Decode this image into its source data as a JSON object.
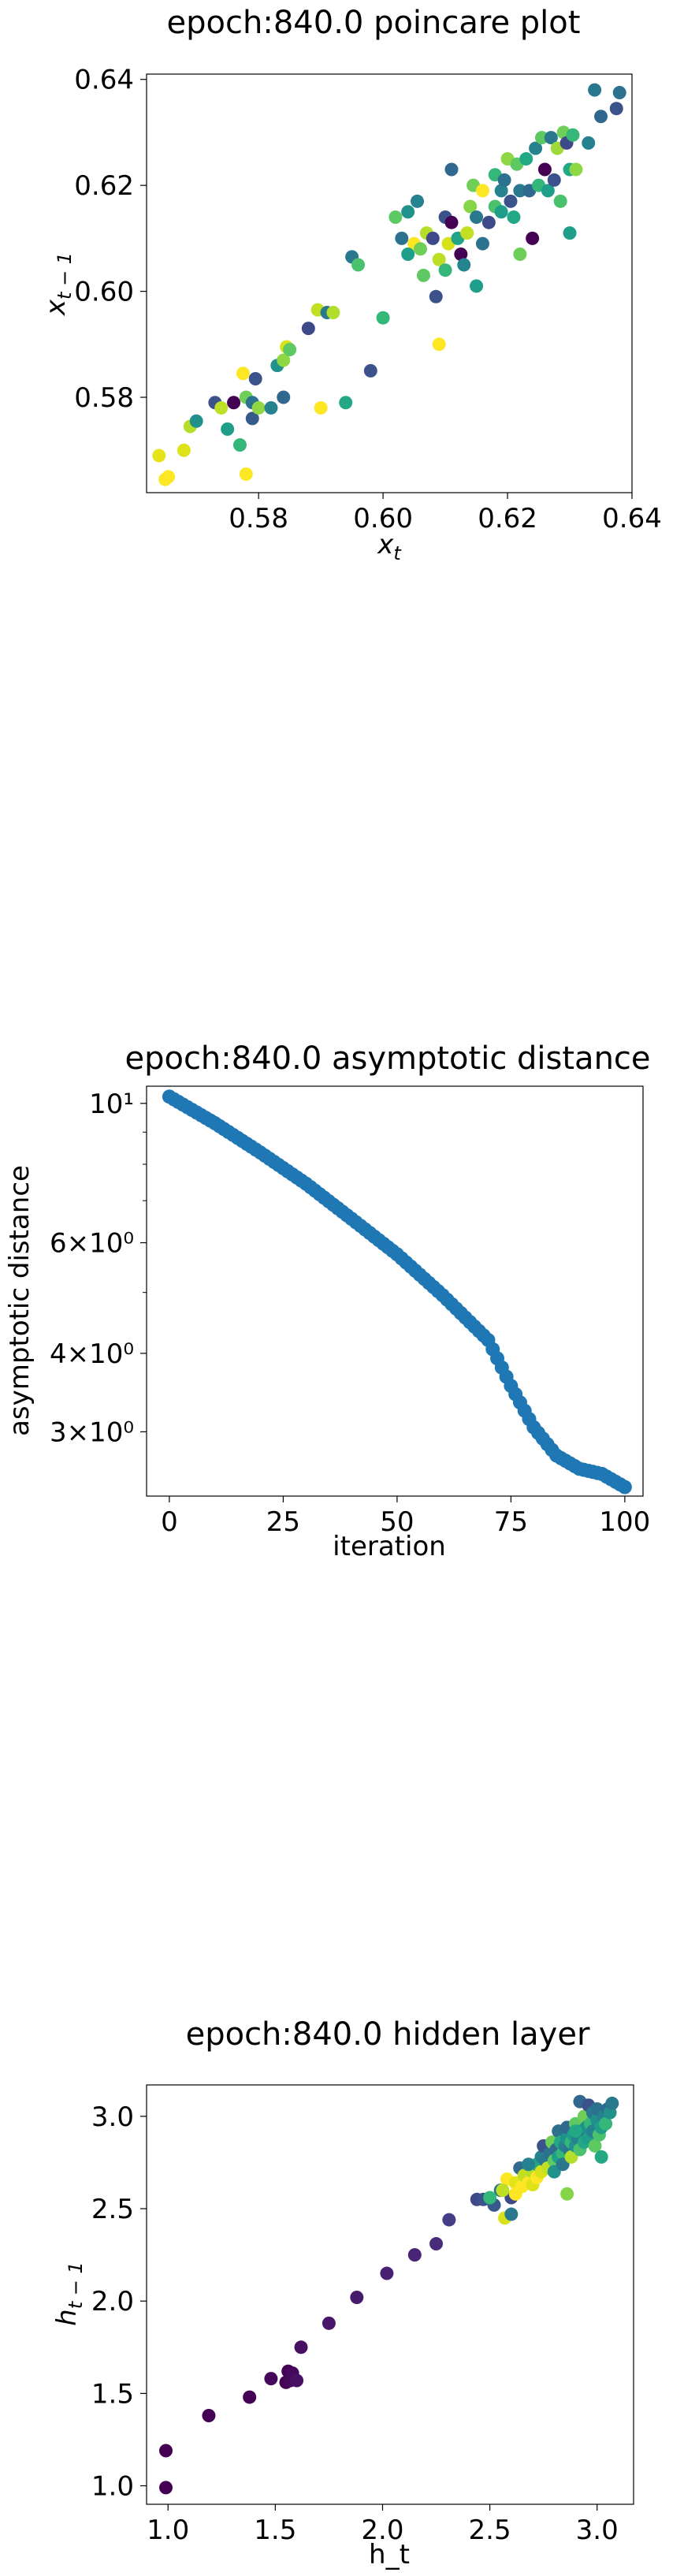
{
  "chart_data": [
    {
      "type": "scatter",
      "title": "epoch:840.0 poincare plot",
      "xlabel": "x_t",
      "ylabel": "x_{t-1}",
      "xlim": [
        0.562,
        0.64
      ],
      "ylim": [
        0.562,
        0.641
      ],
      "xticks": [
        0.58,
        0.6,
        0.62,
        0.64
      ],
      "xtick_labels": [
        "0.58",
        "0.60",
        "0.62",
        "0.64"
      ],
      "yticks": [
        0.58,
        0.6,
        0.62,
        0.64
      ],
      "ytick_labels": [
        "0.58",
        "0.60",
        "0.62",
        "0.64"
      ],
      "colormap": "viridis",
      "points": [
        {
          "x": 0.564,
          "y": 0.569,
          "c": "#e6e419"
        },
        {
          "x": 0.565,
          "y": 0.5645,
          "c": "#fde725"
        },
        {
          "x": 0.5655,
          "y": 0.565,
          "c": "#fde725"
        },
        {
          "x": 0.568,
          "y": 0.57,
          "c": "#dde318"
        },
        {
          "x": 0.569,
          "y": 0.5745,
          "c": "#b5de2b"
        },
        {
          "x": 0.57,
          "y": 0.5755,
          "c": "#21918c"
        },
        {
          "x": 0.573,
          "y": 0.579,
          "c": "#3b528b"
        },
        {
          "x": 0.574,
          "y": 0.578,
          "c": "#bddf26"
        },
        {
          "x": 0.575,
          "y": 0.574,
          "c": "#1f9e89"
        },
        {
          "x": 0.576,
          "y": 0.579,
          "c": "#440154"
        },
        {
          "x": 0.577,
          "y": 0.571,
          "c": "#35b779"
        },
        {
          "x": 0.578,
          "y": 0.5655,
          "c": "#fde725"
        },
        {
          "x": 0.5775,
          "y": 0.5845,
          "c": "#fde725"
        },
        {
          "x": 0.578,
          "y": 0.58,
          "c": "#6ece58"
        },
        {
          "x": 0.579,
          "y": 0.579,
          "c": "#2c728e"
        },
        {
          "x": 0.579,
          "y": 0.576,
          "c": "#38598c"
        },
        {
          "x": 0.5795,
          "y": 0.5835,
          "c": "#3b528b"
        },
        {
          "x": 0.58,
          "y": 0.578,
          "c": "#90d743"
        },
        {
          "x": 0.582,
          "y": 0.578,
          "c": "#26828e"
        },
        {
          "x": 0.583,
          "y": 0.586,
          "c": "#21918c"
        },
        {
          "x": 0.584,
          "y": 0.587,
          "c": "#8fd744"
        },
        {
          "x": 0.584,
          "y": 0.58,
          "c": "#31688e"
        },
        {
          "x": 0.5845,
          "y": 0.5895,
          "c": "#d8e219"
        },
        {
          "x": 0.585,
          "y": 0.589,
          "c": "#5ec962"
        },
        {
          "x": 0.588,
          "y": 0.593,
          "c": "#3e4989"
        },
        {
          "x": 0.5895,
          "y": 0.5965,
          "c": "#c2df23"
        },
        {
          "x": 0.59,
          "y": 0.578,
          "c": "#fde725"
        },
        {
          "x": 0.591,
          "y": 0.596,
          "c": "#2a788e"
        },
        {
          "x": 0.592,
          "y": 0.596,
          "c": "#b2dd2d"
        },
        {
          "x": 0.594,
          "y": 0.579,
          "c": "#22a884"
        },
        {
          "x": 0.595,
          "y": 0.6065,
          "c": "#2a788e"
        },
        {
          "x": 0.596,
          "y": 0.605,
          "c": "#4ac16d"
        },
        {
          "x": 0.598,
          "y": 0.585,
          "c": "#3b528b"
        },
        {
          "x": 0.6,
          "y": 0.595,
          "c": "#35b779"
        },
        {
          "x": 0.602,
          "y": 0.614,
          "c": "#5ec962"
        },
        {
          "x": 0.603,
          "y": 0.61,
          "c": "#2c728e"
        },
        {
          "x": 0.604,
          "y": 0.615,
          "c": "#21918c"
        },
        {
          "x": 0.605,
          "y": 0.609,
          "c": "#fde725"
        },
        {
          "x": 0.604,
          "y": 0.607,
          "c": "#1f9e89"
        },
        {
          "x": 0.6055,
          "y": 0.617,
          "c": "#26828e"
        },
        {
          "x": 0.606,
          "y": 0.608,
          "c": "#6ece58"
        },
        {
          "x": 0.6065,
          "y": 0.603,
          "c": "#5ec962"
        },
        {
          "x": 0.607,
          "y": 0.611,
          "c": "#b5de2b"
        },
        {
          "x": 0.608,
          "y": 0.61,
          "c": "#3e4989"
        },
        {
          "x": 0.6085,
          "y": 0.599,
          "c": "#3b528b"
        },
        {
          "x": 0.609,
          "y": 0.606,
          "c": "#bddf26"
        },
        {
          "x": 0.609,
          "y": 0.59,
          "c": "#fde725"
        },
        {
          "x": 0.61,
          "y": 0.614,
          "c": "#3b528b"
        },
        {
          "x": 0.61,
          "y": 0.604,
          "c": "#35b779"
        },
        {
          "x": 0.6105,
          "y": 0.609,
          "c": "#d8e219"
        },
        {
          "x": 0.611,
          "y": 0.613,
          "c": "#440154"
        },
        {
          "x": 0.611,
          "y": 0.623,
          "c": "#31688e"
        },
        {
          "x": 0.612,
          "y": 0.61,
          "c": "#20a386"
        },
        {
          "x": 0.6125,
          "y": 0.607,
          "c": "#440154"
        },
        {
          "x": 0.613,
          "y": 0.605,
          "c": "#25858e"
        },
        {
          "x": 0.6135,
          "y": 0.611,
          "c": "#c2df23"
        },
        {
          "x": 0.614,
          "y": 0.616,
          "c": "#86d549"
        },
        {
          "x": 0.6145,
          "y": 0.62,
          "c": "#6ece58"
        },
        {
          "x": 0.615,
          "y": 0.614,
          "c": "#2a788e"
        },
        {
          "x": 0.615,
          "y": 0.601,
          "c": "#1f9e89"
        },
        {
          "x": 0.616,
          "y": 0.619,
          "c": "#fde725"
        },
        {
          "x": 0.616,
          "y": 0.609,
          "c": "#2c728e"
        },
        {
          "x": 0.617,
          "y": 0.613,
          "c": "#3e4989"
        },
        {
          "x": 0.618,
          "y": 0.616,
          "c": "#4ac16d"
        },
        {
          "x": 0.618,
          "y": 0.622,
          "c": "#35b779"
        },
        {
          "x": 0.619,
          "y": 0.615,
          "c": "#1f9e89"
        },
        {
          "x": 0.619,
          "y": 0.619,
          "c": "#26828e"
        },
        {
          "x": 0.6195,
          "y": 0.621,
          "c": "#2c728e"
        },
        {
          "x": 0.62,
          "y": 0.625,
          "c": "#8fd744"
        },
        {
          "x": 0.6205,
          "y": 0.617,
          "c": "#3b528b"
        },
        {
          "x": 0.621,
          "y": 0.614,
          "c": "#22a884"
        },
        {
          "x": 0.6215,
          "y": 0.624,
          "c": "#5ec962"
        },
        {
          "x": 0.622,
          "y": 0.619,
          "c": "#2a788e"
        },
        {
          "x": 0.622,
          "y": 0.607,
          "c": "#6ece58"
        },
        {
          "x": 0.623,
          "y": 0.625,
          "c": "#22a884"
        },
        {
          "x": 0.6235,
          "y": 0.619,
          "c": "#31688e"
        },
        {
          "x": 0.624,
          "y": 0.61,
          "c": "#440154"
        },
        {
          "x": 0.6245,
          "y": 0.627,
          "c": "#26828e"
        },
        {
          "x": 0.625,
          "y": 0.62,
          "c": "#35b779"
        },
        {
          "x": 0.6255,
          "y": 0.629,
          "c": "#5ec962"
        },
        {
          "x": 0.626,
          "y": 0.623,
          "c": "#440154"
        },
        {
          "x": 0.6265,
          "y": 0.619,
          "c": "#1f9e89"
        },
        {
          "x": 0.627,
          "y": 0.629,
          "c": "#2a788e"
        },
        {
          "x": 0.6275,
          "y": 0.621,
          "c": "#3b528b"
        },
        {
          "x": 0.628,
          "y": 0.627,
          "c": "#9fda3a"
        },
        {
          "x": 0.6285,
          "y": 0.617,
          "c": "#4ac16d"
        },
        {
          "x": 0.629,
          "y": 0.63,
          "c": "#6ece58"
        },
        {
          "x": 0.6295,
          "y": 0.628,
          "c": "#3e4989"
        },
        {
          "x": 0.63,
          "y": 0.623,
          "c": "#22a884"
        },
        {
          "x": 0.63,
          "y": 0.611,
          "c": "#1f9e89"
        },
        {
          "x": 0.6305,
          "y": 0.6295,
          "c": "#35b779"
        },
        {
          "x": 0.631,
          "y": 0.623,
          "c": "#8fd744"
        },
        {
          "x": 0.633,
          "y": 0.628,
          "c": "#26828e"
        },
        {
          "x": 0.634,
          "y": 0.638,
          "c": "#2a788e"
        },
        {
          "x": 0.635,
          "y": 0.633,
          "c": "#31688e"
        },
        {
          "x": 0.6375,
          "y": 0.6345,
          "c": "#3b528b"
        },
        {
          "x": 0.638,
          "y": 0.6375,
          "c": "#2c728e"
        }
      ]
    },
    {
      "type": "scatter",
      "title": "epoch:840.0 asymptotic distance",
      "xlabel": "iteration",
      "ylabel": "asymptotic distance",
      "yscale": "log",
      "xlim": [
        -5,
        104
      ],
      "ylim": [
        2.37,
        10.65
      ],
      "xticks": [
        0,
        25,
        50,
        75,
        100
      ],
      "xtick_labels": [
        "0",
        "25",
        "50",
        "75",
        "100"
      ],
      "yticks": [
        10,
        6,
        4,
        3
      ],
      "ytick_labels": [
        "10¹",
        "6×10⁰",
        "4×10⁰",
        "3×10⁰"
      ],
      "series_color": "#1f77b4",
      "knots_x": [
        0,
        10,
        20,
        30,
        40,
        50,
        60,
        70,
        75,
        80,
        85,
        90,
        95,
        100
      ],
      "knots_y": [
        10.25,
        9.3,
        8.35,
        7.45,
        6.55,
        5.75,
        4.95,
        4.2,
        3.55,
        3.05,
        2.75,
        2.62,
        2.57,
        2.45
      ]
    },
    {
      "type": "scatter",
      "title": "epoch:840.0 hidden layer",
      "xlabel": "h_t",
      "ylabel": "h_{t-1}",
      "xlim": [
        0.9,
        3.17
      ],
      "ylim": [
        0.9,
        3.17
      ],
      "xticks": [
        1.0,
        1.5,
        2.0,
        2.5,
        3.0
      ],
      "xtick_labels": [
        "1.0",
        "1.5",
        "2.0",
        "2.5",
        "3.0"
      ],
      "yticks": [
        1.0,
        1.5,
        2.0,
        2.5,
        3.0
      ],
      "ytick_labels": [
        "1.0",
        "1.5",
        "2.0",
        "2.5",
        "3.0"
      ],
      "colormap": "viridis",
      "points": [
        {
          "x": 0.99,
          "y": 0.99,
          "c": "#440154"
        },
        {
          "x": 0.99,
          "y": 1.19,
          "c": "#440154"
        },
        {
          "x": 1.19,
          "y": 1.38,
          "c": "#440154"
        },
        {
          "x": 1.38,
          "y": 1.48,
          "c": "#440154"
        },
        {
          "x": 1.48,
          "y": 1.58,
          "c": "#46085c"
        },
        {
          "x": 1.55,
          "y": 1.56,
          "c": "#440154"
        },
        {
          "x": 1.57,
          "y": 1.57,
          "c": "#46085c"
        },
        {
          "x": 1.56,
          "y": 1.62,
          "c": "#440154"
        },
        {
          "x": 1.58,
          "y": 1.61,
          "c": "#46085c"
        },
        {
          "x": 1.6,
          "y": 1.57,
          "c": "#471063"
        },
        {
          "x": 1.62,
          "y": 1.75,
          "c": "#471063"
        },
        {
          "x": 1.75,
          "y": 1.88,
          "c": "#481769"
        },
        {
          "x": 1.88,
          "y": 2.02,
          "c": "#481a6c"
        },
        {
          "x": 2.02,
          "y": 2.15,
          "c": "#482173"
        },
        {
          "x": 2.15,
          "y": 2.25,
          "c": "#482475"
        },
        {
          "x": 2.25,
          "y": 2.31,
          "c": "#472c7a"
        },
        {
          "x": 2.31,
          "y": 2.44,
          "c": "#433e85"
        },
        {
          "x": 2.44,
          "y": 2.55,
          "c": "#3e4989"
        },
        {
          "x": 2.47,
          "y": 2.55,
          "c": "#3b528b"
        },
        {
          "x": 2.52,
          "y": 2.52,
          "c": "#38598c"
        },
        {
          "x": 2.55,
          "y": 2.6,
          "c": "#2c728e"
        },
        {
          "x": 2.57,
          "y": 2.45,
          "c": "#d8e219"
        },
        {
          "x": 2.58,
          "y": 2.66,
          "c": "#fde725"
        },
        {
          "x": 2.6,
          "y": 2.56,
          "c": "#3e4989"
        },
        {
          "x": 2.6,
          "y": 2.47,
          "c": "#2a788e"
        },
        {
          "x": 2.62,
          "y": 2.64,
          "c": "#e5e419"
        },
        {
          "x": 2.64,
          "y": 2.72,
          "c": "#31688e"
        },
        {
          "x": 2.65,
          "y": 2.62,
          "c": "#fde725"
        },
        {
          "x": 2.66,
          "y": 2.68,
          "c": "#c2df23"
        },
        {
          "x": 2.68,
          "y": 2.64,
          "c": "#fde725"
        },
        {
          "x": 2.7,
          "y": 2.7,
          "c": "#b5de2b"
        },
        {
          "x": 2.7,
          "y": 2.63,
          "c": "#dde318"
        },
        {
          "x": 2.72,
          "y": 2.74,
          "c": "#22a884"
        },
        {
          "x": 2.72,
          "y": 2.67,
          "c": "#fde725"
        },
        {
          "x": 2.74,
          "y": 2.78,
          "c": "#26828e"
        },
        {
          "x": 2.74,
          "y": 2.7,
          "c": "#d8e219"
        },
        {
          "x": 2.75,
          "y": 2.84,
          "c": "#3b528b"
        },
        {
          "x": 2.76,
          "y": 2.76,
          "c": "#2a788e"
        },
        {
          "x": 2.77,
          "y": 2.72,
          "c": "#c2df23"
        },
        {
          "x": 2.78,
          "y": 2.8,
          "c": "#2c728e"
        },
        {
          "x": 2.79,
          "y": 2.86,
          "c": "#6ece58"
        },
        {
          "x": 2.8,
          "y": 2.76,
          "c": "#5ec962"
        },
        {
          "x": 2.8,
          "y": 2.7,
          "c": "#21918c"
        },
        {
          "x": 2.81,
          "y": 2.82,
          "c": "#31688e"
        },
        {
          "x": 2.82,
          "y": 2.92,
          "c": "#2c728e"
        },
        {
          "x": 2.82,
          "y": 2.78,
          "c": "#1f9e89"
        },
        {
          "x": 2.83,
          "y": 2.86,
          "c": "#22a884"
        },
        {
          "x": 2.84,
          "y": 2.8,
          "c": "#35b779"
        },
        {
          "x": 2.84,
          "y": 2.74,
          "c": "#2a788e"
        },
        {
          "x": 2.85,
          "y": 2.84,
          "c": "#26828e"
        },
        {
          "x": 2.86,
          "y": 2.88,
          "c": "#21918c"
        },
        {
          "x": 2.86,
          "y": 2.94,
          "c": "#31688e"
        },
        {
          "x": 2.86,
          "y": 2.58,
          "c": "#86d549"
        },
        {
          "x": 2.87,
          "y": 2.82,
          "c": "#2a788e"
        },
        {
          "x": 2.88,
          "y": 2.86,
          "c": "#35b779"
        },
        {
          "x": 2.88,
          "y": 2.78,
          "c": "#b5de2b"
        },
        {
          "x": 2.89,
          "y": 2.9,
          "c": "#1f9e89"
        },
        {
          "x": 2.9,
          "y": 2.84,
          "c": "#21918c"
        },
        {
          "x": 2.9,
          "y": 2.96,
          "c": "#5ec962"
        },
        {
          "x": 2.91,
          "y": 2.88,
          "c": "#26828e"
        },
        {
          "x": 2.92,
          "y": 2.82,
          "c": "#4ac16d"
        },
        {
          "x": 2.92,
          "y": 3.08,
          "c": "#31688e"
        },
        {
          "x": 2.93,
          "y": 2.92,
          "c": "#2c728e"
        },
        {
          "x": 2.94,
          "y": 2.86,
          "c": "#22a884"
        },
        {
          "x": 2.94,
          "y": 3.0,
          "c": "#6ece58"
        },
        {
          "x": 2.95,
          "y": 2.94,
          "c": "#21918c"
        },
        {
          "x": 2.96,
          "y": 2.88,
          "c": "#1f9e89"
        },
        {
          "x": 2.96,
          "y": 3.06,
          "c": "#3b528b"
        },
        {
          "x": 2.97,
          "y": 2.96,
          "c": "#35b779"
        },
        {
          "x": 2.98,
          "y": 2.92,
          "c": "#26828e"
        },
        {
          "x": 2.98,
          "y": 3.02,
          "c": "#2a788e"
        },
        {
          "x": 2.99,
          "y": 2.84,
          "c": "#5ec962"
        },
        {
          "x": 3.0,
          "y": 2.98,
          "c": "#21918c"
        },
        {
          "x": 3.0,
          "y": 3.04,
          "c": "#2c728e"
        },
        {
          "x": 3.01,
          "y": 2.9,
          "c": "#4ac16d"
        },
        {
          "x": 3.02,
          "y": 2.94,
          "c": "#1f9e89"
        },
        {
          "x": 3.02,
          "y": 2.78,
          "c": "#22a884"
        },
        {
          "x": 3.03,
          "y": 3.0,
          "c": "#26828e"
        },
        {
          "x": 3.04,
          "y": 2.96,
          "c": "#35b779"
        },
        {
          "x": 3.05,
          "y": 3.04,
          "c": "#31688e"
        },
        {
          "x": 3.06,
          "y": 3.02,
          "c": "#21918c"
        },
        {
          "x": 3.07,
          "y": 3.07,
          "c": "#2a788e"
        },
        {
          "x": 2.5,
          "y": 2.56,
          "c": "#35b779"
        },
        {
          "x": 2.56,
          "y": 2.6,
          "c": "#bddf26"
        },
        {
          "x": 2.62,
          "y": 2.58,
          "c": "#fde725"
        },
        {
          "x": 2.68,
          "y": 2.74,
          "c": "#26828e"
        },
        {
          "x": 2.9,
          "y": 2.92,
          "c": "#22a884"
        }
      ]
    }
  ]
}
